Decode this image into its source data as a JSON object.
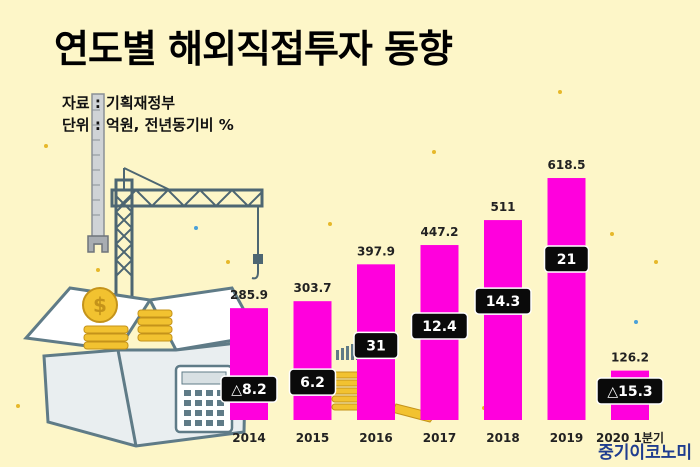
{
  "title": "연도별 해외직접투자 동향",
  "source_line": "자료 : 기획재정부",
  "unit_line": "단위 : 억원, 전년동기비 %",
  "watermark": "중기이코노미",
  "colors": {
    "background": "#fdf6c8",
    "bar": "#ff00dd",
    "badge": "#0a0a0a",
    "badge_text": "#ffffff"
  },
  "chart_data": {
    "type": "bar",
    "title": "연도별 해외직접투자 동향",
    "categories": [
      "2014",
      "2015",
      "2016",
      "2017",
      "2018",
      "2019",
      "2020 1분기"
    ],
    "values": [
      285.9,
      303.7,
      397.9,
      447.2,
      511,
      618.5,
      126.2
    ],
    "value_labels": [
      "285.9",
      "303.7",
      "397.9",
      "447.2",
      "511",
      "618.5",
      "126.2"
    ],
    "growth_labels": [
      "△8.2",
      "6.2",
      "31",
      "12.4",
      "14.3",
      "21",
      "△15.3"
    ],
    "growth_values": [
      -8.2,
      6.2,
      31,
      12.4,
      14.3,
      21,
      -15.3
    ],
    "ylim": [
      0,
      700
    ],
    "grid": false,
    "legend": "none"
  }
}
